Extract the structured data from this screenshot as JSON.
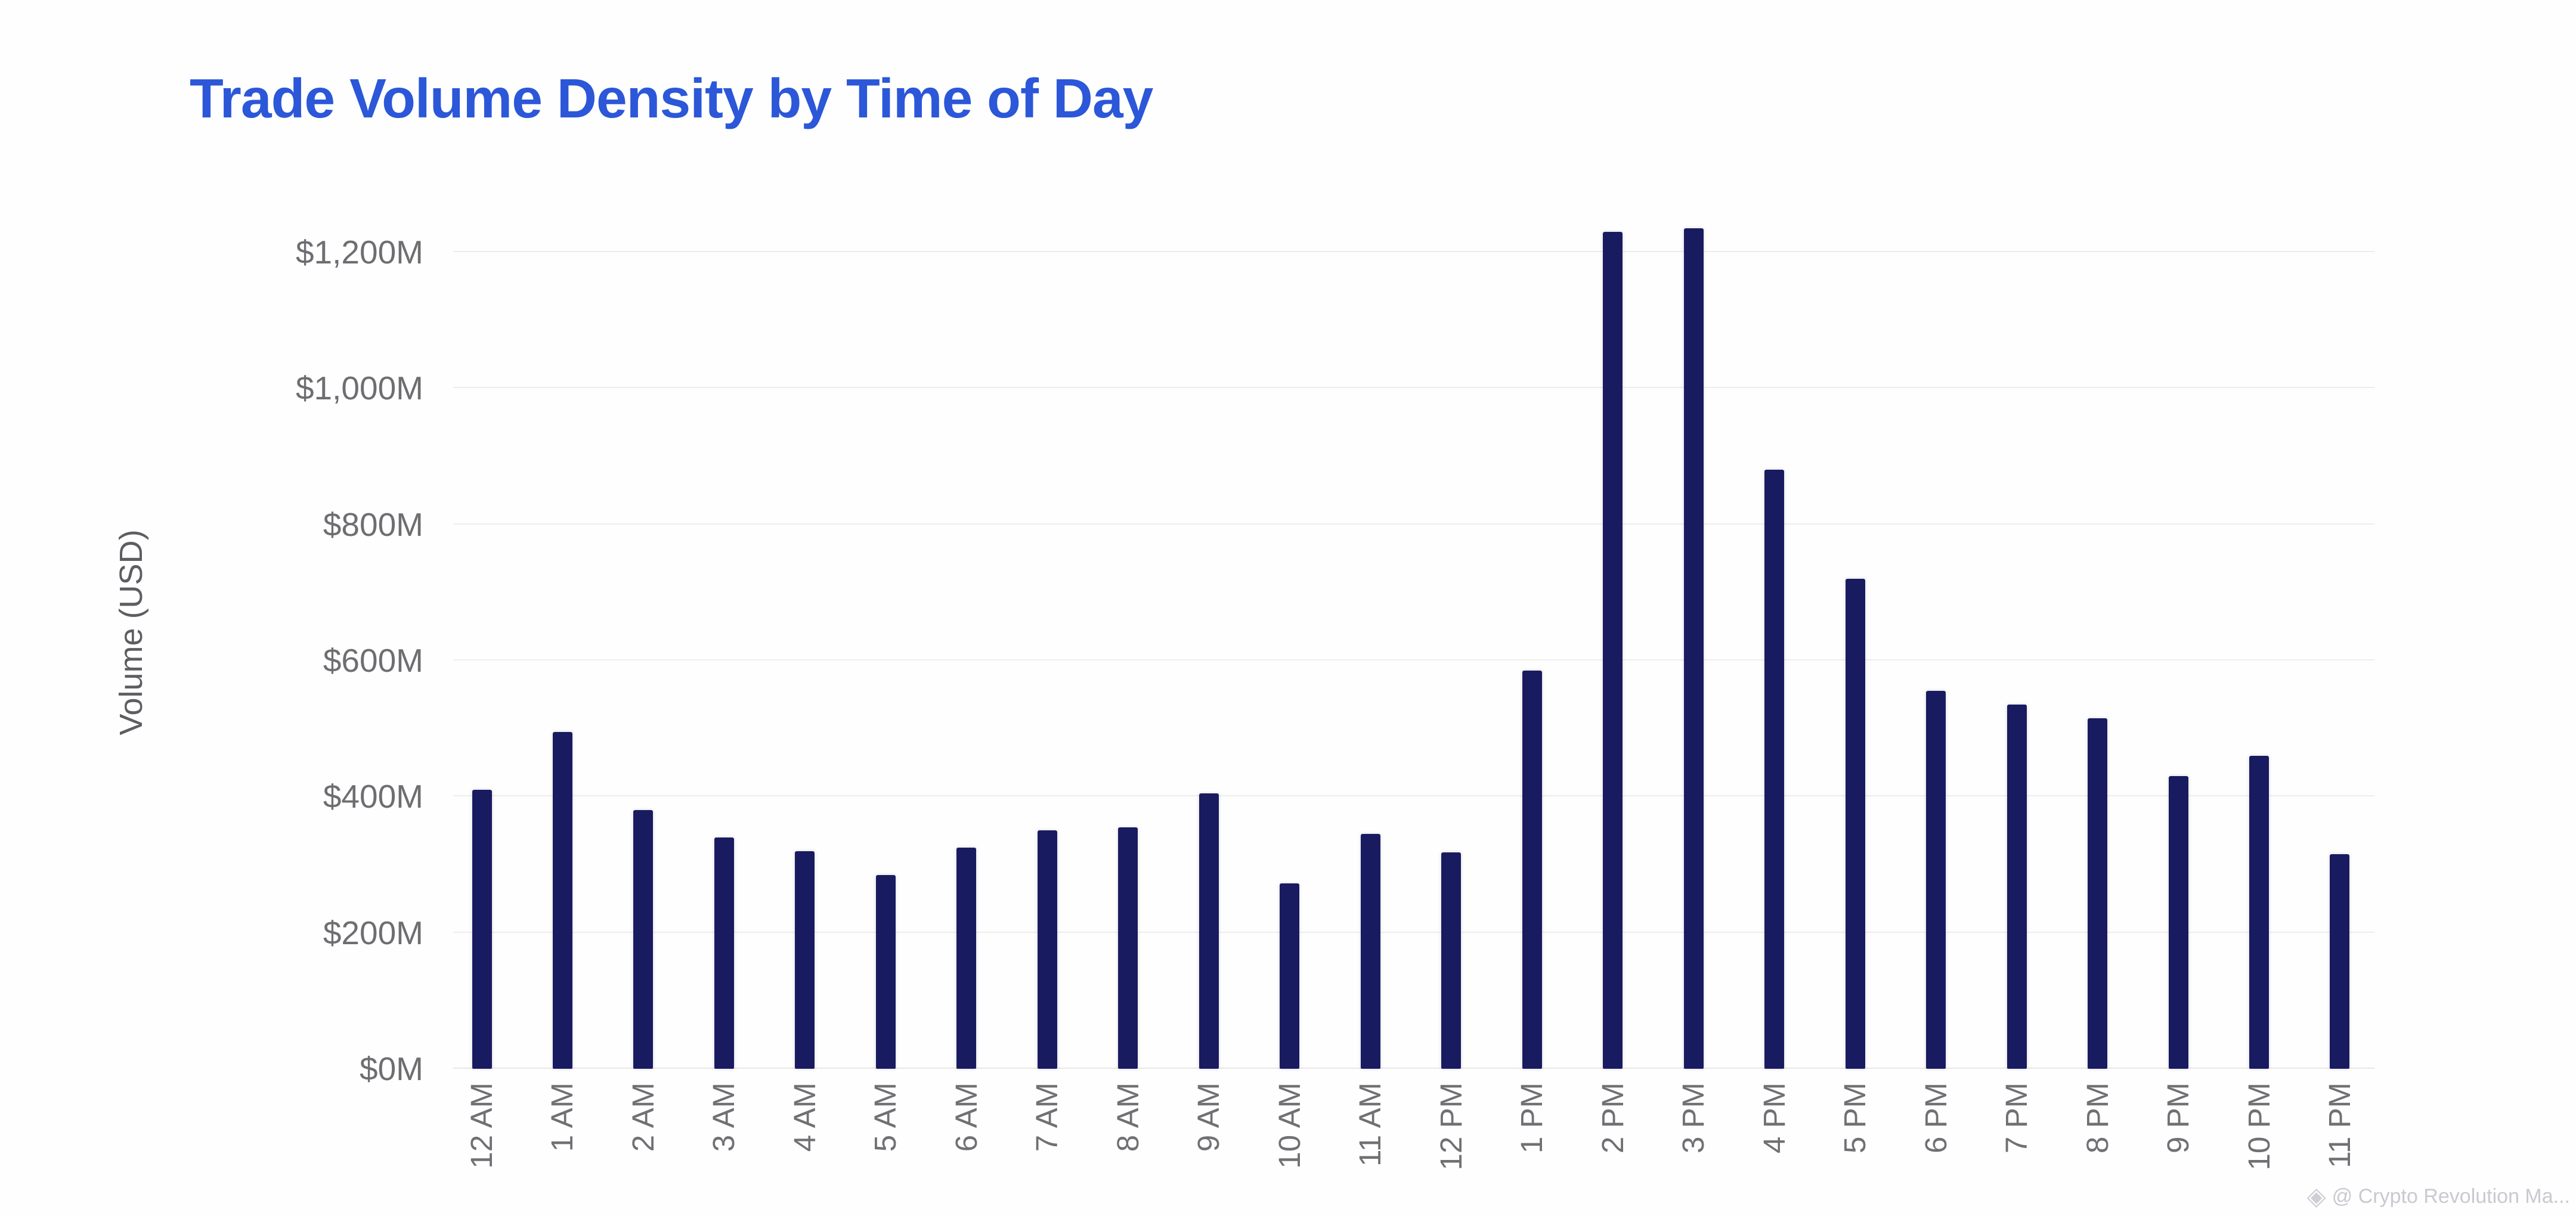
{
  "title": "Trade Volume Density by Time of Day",
  "watermark": {
    "icon": "diamond-logo",
    "text": "@ Crypto Revolution Ma..."
  },
  "colors": {
    "title": "#2b57d8",
    "bar": "#191b60",
    "axis_text": "#6e6e72",
    "watermark_text": "#c9c9d1"
  },
  "chart_data": {
    "type": "bar",
    "title": "Trade Volume Density by Time of Day",
    "xlabel": "",
    "ylabel": "Volume (USD)",
    "categories": [
      "12 AM",
      "1 AM",
      "2 AM",
      "3 AM",
      "4 AM",
      "5 AM",
      "6 AM",
      "7 AM",
      "8 AM",
      "9 AM",
      "10 AM",
      "11 AM",
      "12 PM",
      "1 PM",
      "2 PM",
      "3 PM",
      "4 PM",
      "5 PM",
      "6 PM",
      "7 PM",
      "8 PM",
      "9 PM",
      "10 PM",
      "11 PM"
    ],
    "values": [
      410,
      495,
      380,
      340,
      320,
      285,
      325,
      350,
      355,
      405,
      272,
      345,
      318,
      585,
      1230,
      1235,
      880,
      720,
      555,
      535,
      515,
      430,
      460,
      315
    ],
    "value_unit": "$M",
    "ylim": [
      0,
      1260
    ],
    "ytick_step": 200,
    "ytick_max": 1200,
    "ytick_labels": [
      "$0M",
      "$200M",
      "$400M",
      "$600M",
      "$800M",
      "$1,000M",
      "$1,200M"
    ],
    "grid": "horizontal",
    "legend": "none",
    "bar_color": "#191b60"
  }
}
